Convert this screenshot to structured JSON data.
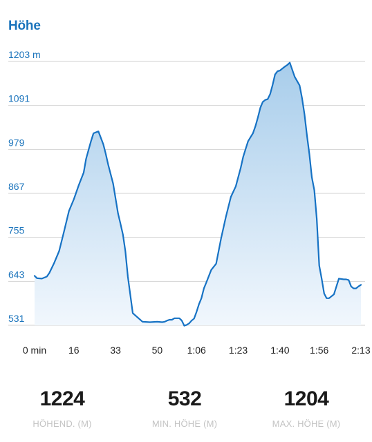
{
  "section_title": "Höhe",
  "colors": {
    "accent": "#1b74bc",
    "line": "#1672c4",
    "fill_top": "#a8cdeb",
    "fill_bottom": "#f1f7fd",
    "grid": "#d2d2d2",
    "x_tick_text": "#222222",
    "stat_value": "#1a1a1a",
    "stat_label": "#c3c3c3"
  },
  "chart_data": {
    "type": "area",
    "title": "Höhe",
    "xlabel": "",
    "ylabel": "",
    "unit": "m",
    "y_ticks": [
      {
        "value": 531,
        "label": "531"
      },
      {
        "value": 643,
        "label": "643"
      },
      {
        "value": 755,
        "label": "755"
      },
      {
        "value": 867,
        "label": "867"
      },
      {
        "value": 979,
        "label": "979"
      },
      {
        "value": 1091,
        "label": "1091"
      },
      {
        "value": 1203,
        "label": "1203 m"
      }
    ],
    "x_ticks": [
      {
        "value": 0,
        "label": "0 min"
      },
      {
        "value": 16,
        "label": "16"
      },
      {
        "value": 33,
        "label": "33"
      },
      {
        "value": 50,
        "label": "50"
      },
      {
        "value": 66,
        "label": "1:06"
      },
      {
        "value": 83,
        "label": "1:23"
      },
      {
        "value": 100,
        "label": "1:40"
      },
      {
        "value": 116,
        "label": "1:56"
      },
      {
        "value": 133,
        "label": "2:13"
      }
    ],
    "xlim": [
      0,
      133
    ],
    "ylim": [
      520,
      1203
    ],
    "grid": true,
    "x": [
      0,
      1,
      3,
      5,
      6,
      8,
      10,
      12,
      14,
      16,
      18,
      20,
      21,
      22,
      23,
      24,
      26,
      28,
      29,
      30,
      32,
      34,
      35,
      36,
      37,
      38,
      40,
      44,
      47,
      50,
      52,
      53,
      54,
      55,
      56,
      57,
      59,
      60,
      61,
      62,
      63,
      64,
      65,
      66,
      67,
      68,
      69,
      70,
      72,
      74,
      76,
      78,
      80,
      82,
      84,
      85,
      86,
      87,
      88,
      89,
      90,
      91,
      92,
      93,
      94,
      95,
      96,
      97,
      98,
      99,
      100,
      101,
      102,
      103,
      104,
      106,
      108,
      109,
      110,
      111,
      112,
      113,
      114,
      115,
      116,
      117,
      118,
      119,
      120,
      122,
      124,
      126,
      127,
      128,
      129,
      130,
      131,
      132,
      133
    ],
    "y": [
      657,
      651,
      650,
      655,
      664,
      690,
      720,
      770,
      822,
      852,
      888,
      920,
      955,
      978,
      1000,
      1020,
      1025,
      992,
      968,
      940,
      892,
      816,
      790,
      762,
      720,
      655,
      562,
      540,
      539,
      540,
      539,
      540,
      543,
      545,
      545,
      549,
      549,
      543,
      530,
      532,
      536,
      543,
      548,
      565,
      585,
      600,
      625,
      640,
      672,
      688,
      752,
      808,
      858,
      885,
      932,
      960,
      980,
      1000,
      1010,
      1020,
      1038,
      1060,
      1085,
      1100,
      1105,
      1107,
      1120,
      1143,
      1170,
      1178,
      1180,
      1185,
      1190,
      1194,
      1200,
      1164,
      1142,
      1110,
      1068,
      1015,
      966,
      908,
      875,
      802,
      683,
      650,
      612,
      600,
      600,
      610,
      650,
      648,
      648,
      646,
      630,
      625,
      625,
      630,
      634
    ]
  },
  "stats": [
    {
      "value": "1224",
      "label": "HÖHEND. (M)"
    },
    {
      "value": "532",
      "label": "MIN. HÖHE (M)"
    },
    {
      "value": "1204",
      "label": "MAX. HÖHE (M)"
    }
  ]
}
